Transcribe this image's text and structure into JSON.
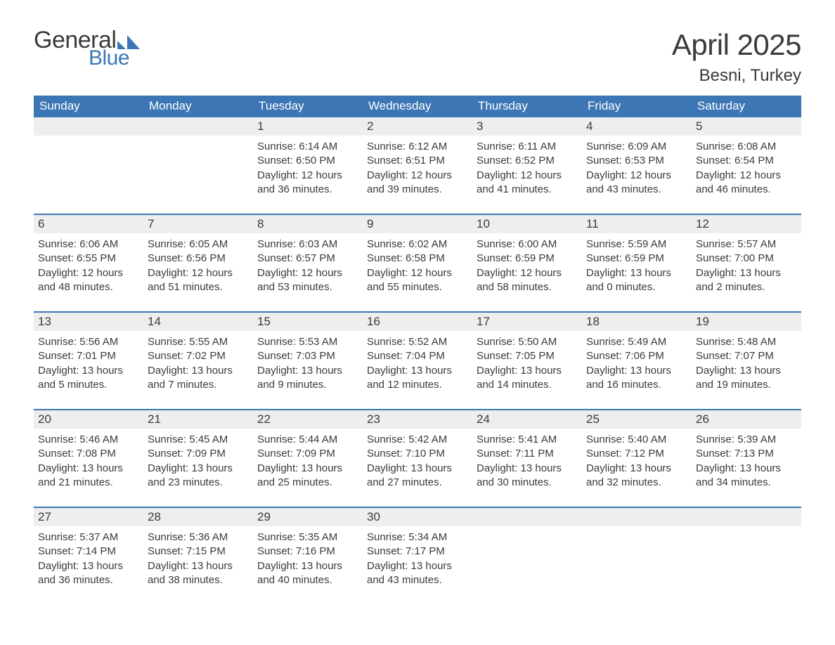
{
  "logo": {
    "word1": "General",
    "word2": "Blue",
    "shape_color": "#3c76b4",
    "word1_color": "#3b3b3b"
  },
  "title": "April 2025",
  "location": "Besni, Turkey",
  "colors": {
    "header_bg": "#3c76b4",
    "header_text": "#ffffff",
    "daynum_bg": "#eeeeee",
    "text": "#3b3b3b",
    "rule": "#3c76b4",
    "page_bg": "#ffffff"
  },
  "typography": {
    "title_fontsize": 42,
    "location_fontsize": 24,
    "header_fontsize": 17,
    "body_fontsize": 15
  },
  "day_headers": [
    "Sunday",
    "Monday",
    "Tuesday",
    "Wednesday",
    "Thursday",
    "Friday",
    "Saturday"
  ],
  "layout": {
    "columns": 7,
    "rows": 5,
    "leading_blanks": 2,
    "trailing_blanks": 3
  },
  "weeks": [
    [
      null,
      null,
      {
        "n": "1",
        "sr": "6:14 AM",
        "ss": "6:50 PM",
        "dh": "12",
        "dm": "36"
      },
      {
        "n": "2",
        "sr": "6:12 AM",
        "ss": "6:51 PM",
        "dh": "12",
        "dm": "39"
      },
      {
        "n": "3",
        "sr": "6:11 AM",
        "ss": "6:52 PM",
        "dh": "12",
        "dm": "41"
      },
      {
        "n": "4",
        "sr": "6:09 AM",
        "ss": "6:53 PM",
        "dh": "12",
        "dm": "43"
      },
      {
        "n": "5",
        "sr": "6:08 AM",
        "ss": "6:54 PM",
        "dh": "12",
        "dm": "46"
      }
    ],
    [
      {
        "n": "6",
        "sr": "6:06 AM",
        "ss": "6:55 PM",
        "dh": "12",
        "dm": "48"
      },
      {
        "n": "7",
        "sr": "6:05 AM",
        "ss": "6:56 PM",
        "dh": "12",
        "dm": "51"
      },
      {
        "n": "8",
        "sr": "6:03 AM",
        "ss": "6:57 PM",
        "dh": "12",
        "dm": "53"
      },
      {
        "n": "9",
        "sr": "6:02 AM",
        "ss": "6:58 PM",
        "dh": "12",
        "dm": "55"
      },
      {
        "n": "10",
        "sr": "6:00 AM",
        "ss": "6:59 PM",
        "dh": "12",
        "dm": "58"
      },
      {
        "n": "11",
        "sr": "5:59 AM",
        "ss": "6:59 PM",
        "dh": "13",
        "dm": "0"
      },
      {
        "n": "12",
        "sr": "5:57 AM",
        "ss": "7:00 PM",
        "dh": "13",
        "dm": "2"
      }
    ],
    [
      {
        "n": "13",
        "sr": "5:56 AM",
        "ss": "7:01 PM",
        "dh": "13",
        "dm": "5"
      },
      {
        "n": "14",
        "sr": "5:55 AM",
        "ss": "7:02 PM",
        "dh": "13",
        "dm": "7"
      },
      {
        "n": "15",
        "sr": "5:53 AM",
        "ss": "7:03 PM",
        "dh": "13",
        "dm": "9"
      },
      {
        "n": "16",
        "sr": "5:52 AM",
        "ss": "7:04 PM",
        "dh": "13",
        "dm": "12"
      },
      {
        "n": "17",
        "sr": "5:50 AM",
        "ss": "7:05 PM",
        "dh": "13",
        "dm": "14"
      },
      {
        "n": "18",
        "sr": "5:49 AM",
        "ss": "7:06 PM",
        "dh": "13",
        "dm": "16"
      },
      {
        "n": "19",
        "sr": "5:48 AM",
        "ss": "7:07 PM",
        "dh": "13",
        "dm": "19"
      }
    ],
    [
      {
        "n": "20",
        "sr": "5:46 AM",
        "ss": "7:08 PM",
        "dh": "13",
        "dm": "21"
      },
      {
        "n": "21",
        "sr": "5:45 AM",
        "ss": "7:09 PM",
        "dh": "13",
        "dm": "23"
      },
      {
        "n": "22",
        "sr": "5:44 AM",
        "ss": "7:09 PM",
        "dh": "13",
        "dm": "25"
      },
      {
        "n": "23",
        "sr": "5:42 AM",
        "ss": "7:10 PM",
        "dh": "13",
        "dm": "27"
      },
      {
        "n": "24",
        "sr": "5:41 AM",
        "ss": "7:11 PM",
        "dh": "13",
        "dm": "30"
      },
      {
        "n": "25",
        "sr": "5:40 AM",
        "ss": "7:12 PM",
        "dh": "13",
        "dm": "32"
      },
      {
        "n": "26",
        "sr": "5:39 AM",
        "ss": "7:13 PM",
        "dh": "13",
        "dm": "34"
      }
    ],
    [
      {
        "n": "27",
        "sr": "5:37 AM",
        "ss": "7:14 PM",
        "dh": "13",
        "dm": "36"
      },
      {
        "n": "28",
        "sr": "5:36 AM",
        "ss": "7:15 PM",
        "dh": "13",
        "dm": "38"
      },
      {
        "n": "29",
        "sr": "5:35 AM",
        "ss": "7:16 PM",
        "dh": "13",
        "dm": "40"
      },
      {
        "n": "30",
        "sr": "5:34 AM",
        "ss": "7:17 PM",
        "dh": "13",
        "dm": "43"
      },
      null,
      null,
      null
    ]
  ],
  "labels": {
    "sunrise": "Sunrise: ",
    "sunset": "Sunset: ",
    "daylight_prefix": "Daylight: ",
    "hours_word": " hours",
    "and_word": "and ",
    "minutes_word": " minutes."
  }
}
